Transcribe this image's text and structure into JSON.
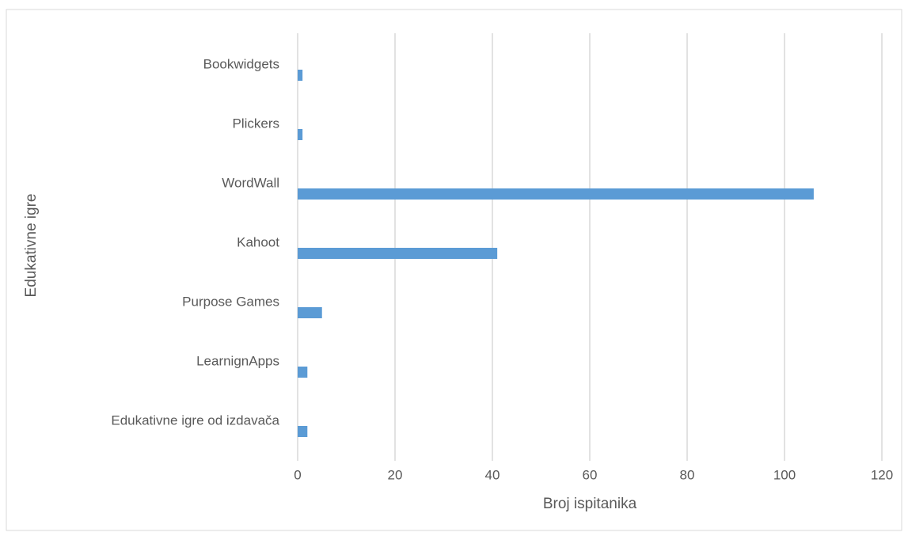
{
  "chart_data": {
    "type": "bar",
    "orientation": "horizontal",
    "xlabel": "Broj ispitanika",
    "ylabel": "Edukativne igre",
    "categories": [
      "Bookwidgets",
      "Plickers",
      "WordWall",
      "Kahoot",
      "Purpose Games",
      "LearnignApps",
      "Edukativne igre od izdavača"
    ],
    "values": [
      1,
      1,
      106,
      41,
      5,
      2,
      2
    ],
    "color": "#5b9bd5",
    "xlim": [
      0,
      120
    ],
    "xticks": [
      0,
      20,
      40,
      60,
      80,
      100,
      120
    ],
    "grid": true
  }
}
